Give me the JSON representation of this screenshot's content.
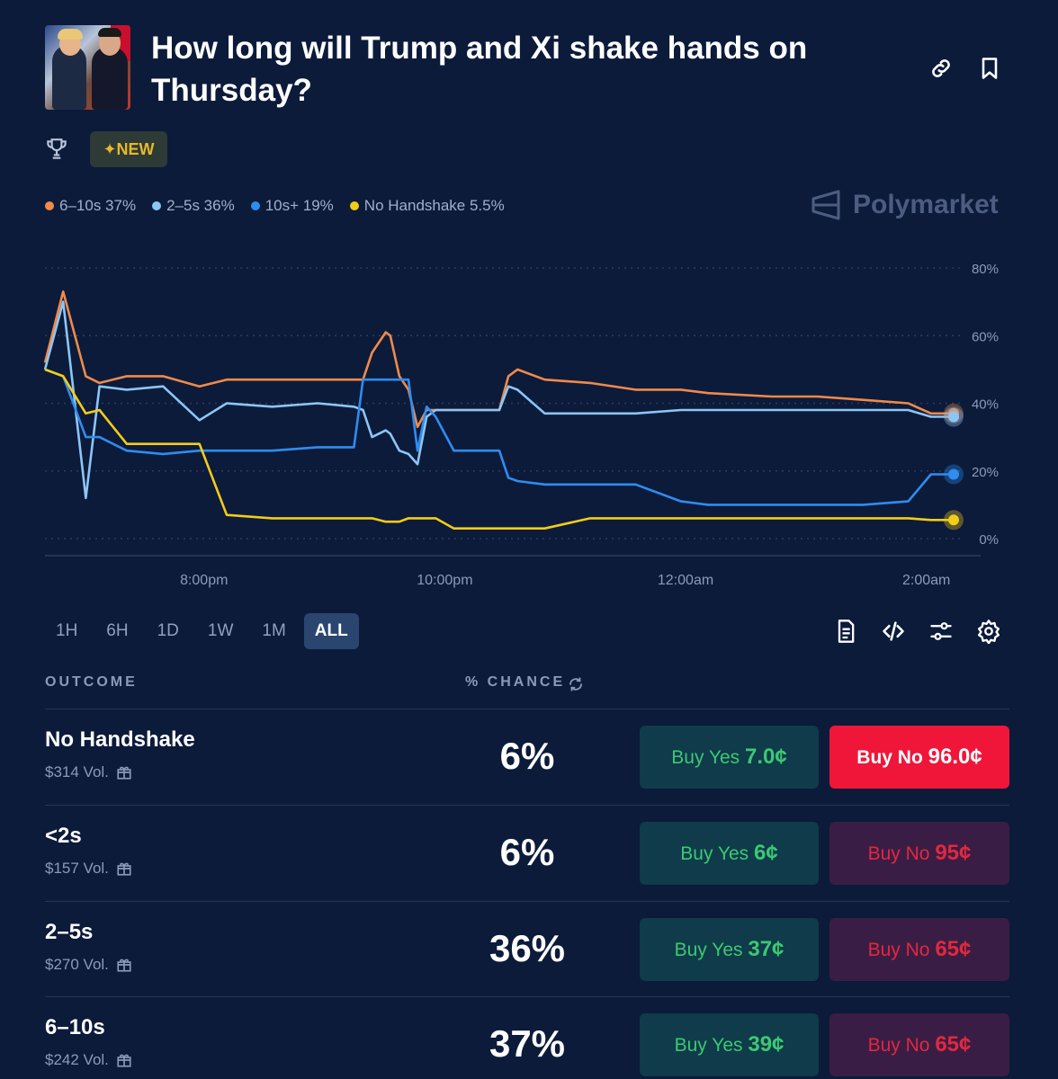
{
  "market": {
    "title": "How long will Trump and Xi shake hands on Thursday?",
    "badge_new": "✦NEW"
  },
  "colors": {
    "bg": "#0c1b3a",
    "orange": "#f08a4b",
    "light_blue": "#8cc6f5",
    "blue": "#2f8cf0",
    "yellow": "#f2cc19",
    "yes_text": "#3cc873",
    "no_text": "#e2283e"
  },
  "brand": "Polymarket",
  "legend": [
    {
      "label": "6–10s 37%",
      "color": "#f08a4b"
    },
    {
      "label": "2–5s 36%",
      "color": "#8cc6f5"
    },
    {
      "label": "10s+ 19%",
      "color": "#2f8cf0"
    },
    {
      "label": "No Handshake 5.5%",
      "color": "#f2cc19"
    }
  ],
  "chart_data": {
    "type": "line",
    "title": "",
    "xlabel": "",
    "ylabel": "",
    "ylim": [
      0,
      80
    ],
    "yticks": [
      "0%",
      "20%",
      "40%",
      "60%",
      "80%"
    ],
    "xticks": [
      {
        "label": "8:00pm",
        "t": 0.175
      },
      {
        "label": "10:00pm",
        "t": 0.44
      },
      {
        "label": "12:00am",
        "t": 0.705
      },
      {
        "label": "2:00am",
        "t": 0.97
      }
    ],
    "x": [
      0,
      0.02,
      0.045,
      0.06,
      0.09,
      0.13,
      0.17,
      0.2,
      0.25,
      0.3,
      0.34,
      0.35,
      0.36,
      0.375,
      0.38,
      0.39,
      0.4,
      0.41,
      0.42,
      0.43,
      0.45,
      0.48,
      0.5,
      0.51,
      0.52,
      0.55,
      0.6,
      0.65,
      0.7,
      0.73,
      0.8,
      0.85,
      0.9,
      0.95,
      0.975,
      1
    ],
    "series": [
      {
        "name": "6–10s",
        "color": "#f08a4b",
        "values": [
          52,
          73,
          48,
          46,
          48,
          48,
          45,
          47,
          47,
          47,
          47,
          47,
          55,
          61,
          60,
          48,
          44,
          33,
          38,
          38,
          38,
          38,
          38,
          48,
          50,
          47,
          46,
          44,
          44,
          43,
          42,
          42,
          41,
          40,
          37,
          37
        ]
      },
      {
        "name": "2–5s",
        "color": "#8cc6f5",
        "values": [
          50,
          70,
          12,
          45,
          44,
          45,
          35,
          40,
          39,
          40,
          39,
          38,
          30,
          32,
          31,
          26,
          25,
          22,
          36,
          38,
          38,
          38,
          38,
          45,
          44,
          37,
          37,
          37,
          38,
          38,
          38,
          38,
          38,
          38,
          36,
          36
        ]
      },
      {
        "name": "10s+",
        "color": "#2f8cf0",
        "values": [
          50,
          48,
          30,
          30,
          26,
          25,
          26,
          26,
          26,
          27,
          27,
          47,
          47,
          47,
          47,
          47,
          47,
          26,
          39,
          36,
          26,
          26,
          26,
          18,
          17,
          16,
          16,
          16,
          11,
          10,
          10,
          10,
          10,
          11,
          19,
          19
        ]
      },
      {
        "name": "No Handshake",
        "color": "#f2cc19",
        "values": [
          50,
          48,
          37,
          38,
          28,
          28,
          28,
          7,
          6,
          6,
          6,
          6,
          6,
          5,
          5,
          5,
          6,
          6,
          6,
          6,
          3,
          3,
          3,
          3,
          3,
          3,
          6,
          6,
          6,
          6,
          6,
          6,
          6,
          6,
          5.5,
          5.5
        ]
      }
    ]
  },
  "ranges": [
    "1H",
    "6H",
    "1D",
    "1W",
    "1M",
    "ALL"
  ],
  "active_range": "ALL",
  "table": {
    "col_outcome": "OUTCOME",
    "col_chance": "% CHANCE",
    "rows": [
      {
        "name": "No Handshake",
        "vol": "$314 Vol.",
        "pct": "6%",
        "yes_label": "Buy Yes",
        "yes_price": "7.0¢",
        "no_label": "Buy No",
        "no_price": "96.0¢"
      },
      {
        "name": "<2s",
        "vol": "$157 Vol.",
        "pct": "6%",
        "yes_label": "Buy Yes",
        "yes_price": "6¢",
        "no_label": "Buy No",
        "no_price": "95¢"
      },
      {
        "name": "2–5s",
        "vol": "$270 Vol.",
        "pct": "36%",
        "yes_label": "Buy Yes",
        "yes_price": "37¢",
        "no_label": "Buy No",
        "no_price": "65¢"
      },
      {
        "name": "6–10s",
        "vol": "$242 Vol.",
        "pct": "37%",
        "yes_label": "Buy Yes",
        "yes_price": "39¢",
        "no_label": "Buy No",
        "no_price": "65¢"
      }
    ]
  }
}
